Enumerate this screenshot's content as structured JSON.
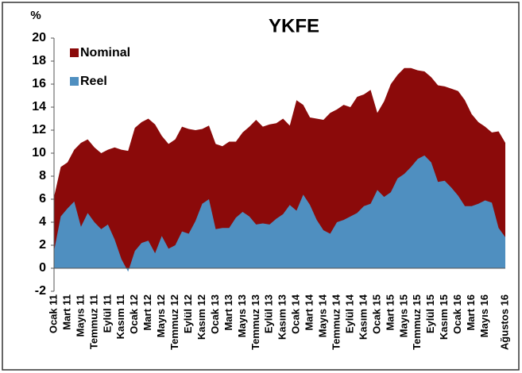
{
  "chart_data": {
    "type": "area",
    "title": "YKFE",
    "y_label": "%",
    "categories": [
      "Ocak 11",
      null,
      "Mart 11",
      null,
      "Mayıs 11",
      null,
      "Temmuz 11",
      null,
      "Eylül 11",
      null,
      "Kasım 11",
      null,
      "Ocak 12",
      null,
      "Mart 12",
      null,
      "Mayıs 12",
      null,
      "Temmuz 12",
      null,
      "Eylül 12",
      null,
      "Kasım 12",
      null,
      "Ocak 13",
      null,
      "Mart 13",
      null,
      "Mayıs 13",
      null,
      "Temmuz 13",
      null,
      "Eylül 13",
      null,
      "Kasım 13",
      null,
      "Ocak 14",
      null,
      "Mart 14",
      null,
      "Mayıs 14",
      null,
      "Temmuz 14",
      null,
      "Eylül 14",
      null,
      "Kasım 14",
      null,
      "Ocak 15",
      null,
      "Mart 15",
      null,
      "Mayıs 15",
      null,
      "Temmuz 15",
      null,
      "Eylül 15",
      null,
      "Kasım 15",
      null,
      "Ocak 16",
      null,
      "Mart 16",
      null,
      "Mayıs 16",
      null,
      null,
      "Ağustos 16"
    ],
    "series": [
      {
        "name": "Nominal",
        "color": "#8b0a0a",
        "values": [
          6.2,
          8.8,
          9.2,
          10.3,
          10.9,
          11.2,
          10.5,
          10.0,
          10.3,
          10.5,
          10.3,
          10.2,
          12.2,
          12.7,
          13.0,
          12.5,
          11.5,
          10.8,
          11.2,
          12.3,
          12.1,
          12.0,
          12.1,
          12.4,
          10.8,
          10.6,
          11.0,
          11.0,
          11.8,
          12.3,
          12.9,
          12.3,
          12.5,
          12.6,
          13.0,
          12.4,
          14.6,
          14.2,
          13.1,
          13.0,
          12.9,
          13.5,
          13.8,
          14.2,
          14.0,
          14.9,
          15.1,
          15.5,
          13.5,
          14.5,
          16.0,
          16.8,
          17.4,
          17.4,
          17.2,
          17.1,
          16.6,
          15.9,
          15.8,
          15.6,
          15.4,
          14.6,
          13.4,
          12.7,
          12.3,
          11.8,
          11.9,
          10.9
        ]
      },
      {
        "name": "Reel",
        "color": "#4f8fc0",
        "values": [
          1.5,
          4.5,
          5.2,
          5.8,
          3.6,
          4.8,
          4.0,
          3.4,
          3.8,
          2.5,
          0.8,
          -0.3,
          1.5,
          2.2,
          2.4,
          1.3,
          2.8,
          1.7,
          2.0,
          3.2,
          3.0,
          4.1,
          5.6,
          6.0,
          3.4,
          3.5,
          3.5,
          4.4,
          4.9,
          4.5,
          3.8,
          3.9,
          3.8,
          4.3,
          4.7,
          5.5,
          5.0,
          6.4,
          5.5,
          4.2,
          3.3,
          3.0,
          4.0,
          4.2,
          4.5,
          4.8,
          5.4,
          5.6,
          6.8,
          6.2,
          6.6,
          7.8,
          8.2,
          8.8,
          9.5,
          9.8,
          9.2,
          7.5,
          7.6,
          7.0,
          6.3,
          5.4,
          5.4,
          5.6,
          5.9,
          5.7,
          3.5,
          2.7
        ]
      }
    ],
    "ylim": [
      -2,
      20
    ],
    "yticks": [
      -2,
      0,
      2,
      4,
      6,
      8,
      10,
      12,
      14,
      16,
      18,
      20
    ]
  }
}
